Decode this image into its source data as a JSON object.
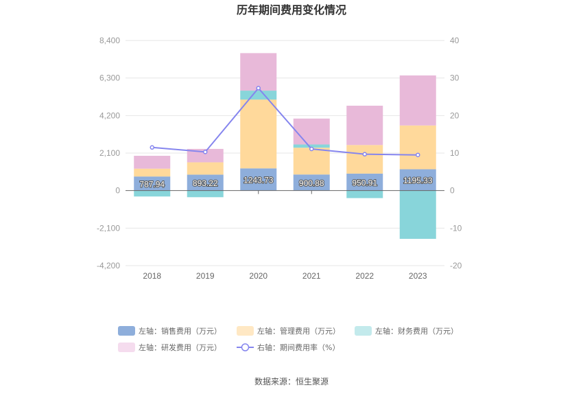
{
  "chart_data": {
    "type": "bar",
    "title": "历年期间费用变化情况",
    "categories": [
      "2018",
      "2019",
      "2020",
      "2021",
      "2022",
      "2023"
    ],
    "left_axis": {
      "min": -4200,
      "max": 8400,
      "ticks": [
        -4200,
        -2100,
        0,
        2100,
        4200,
        6300,
        8400
      ],
      "tick_labels": [
        "-4,200",
        "-2,100",
        "0",
        "2,100",
        "4,200",
        "6,300",
        "8,400"
      ]
    },
    "right_axis": {
      "min": -20,
      "max": 40,
      "ticks": [
        -20,
        -10,
        0,
        10,
        20,
        30,
        40
      ],
      "tick_labels": [
        "-20",
        "-10",
        "0",
        "10",
        "20",
        "30",
        "40"
      ]
    },
    "series": [
      {
        "name": "左轴：销售费用（万元）",
        "type": "bar",
        "axis": "left",
        "color": "#8eaedb",
        "values": [
          787.94,
          893.22,
          1243.73,
          900.88,
          950.91,
          1195.33
        ],
        "labels": [
          "787.94",
          "893.22",
          "1243.73",
          "900.88",
          "950.91",
          "1195.33"
        ]
      },
      {
        "name": "左轴：管理费用（万元）",
        "type": "bar",
        "axis": "left",
        "color": "#ffd99b",
        "values": [
          440,
          690,
          3850,
          1500,
          1600,
          2450
        ]
      },
      {
        "name": "左轴：财务费用（万元）",
        "type": "bar",
        "axis": "left",
        "color": "#88d5da",
        "values": [
          -330,
          -370,
          500,
          180,
          -420,
          -2700
        ]
      },
      {
        "name": "左轴：研发费用（万元）",
        "type": "bar",
        "axis": "left",
        "color": "#e8b9d9",
        "values": [
          720,
          750,
          2100,
          1450,
          2200,
          2800
        ]
      },
      {
        "name": "右轴：期间费用率（%）",
        "type": "line",
        "axis": "right",
        "color": "#8585ee",
        "values": [
          11.5,
          10.3,
          27.3,
          11.1,
          9.7,
          9.5
        ]
      }
    ],
    "legend": {
      "position": "bottom",
      "swatch_colors": [
        "#8eaedb",
        "#ffe8c4",
        "#c3eaec",
        "#f5dcee",
        "#8585ee"
      ]
    },
    "grid": true
  },
  "footer": {
    "source": "数据来源：恒生聚源"
  }
}
